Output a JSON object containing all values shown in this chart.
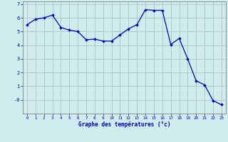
{
  "hours": [
    0,
    1,
    2,
    3,
    4,
    5,
    6,
    7,
    8,
    9,
    10,
    11,
    12,
    13,
    14,
    15,
    16,
    17,
    18,
    19,
    20,
    21,
    22,
    23
  ],
  "temps": [
    5.5,
    5.9,
    6.0,
    6.2,
    5.3,
    5.1,
    5.0,
    4.4,
    4.45,
    4.3,
    4.3,
    4.75,
    5.2,
    5.5,
    6.6,
    6.55,
    6.55,
    4.05,
    4.5,
    3.0,
    1.4,
    1.1,
    -0.05,
    -0.35
  ],
  "line_color": "#0000cc",
  "marker_color": "#0000cc",
  "bg_color": "#d0ecec",
  "grid_color": "#b0c8c8",
  "xlabel": "Graphe des températures (°c)",
  "ylim_min": -1.0,
  "ylim_max": 7.2,
  "xlim_min": -0.5,
  "xlim_max": 23.5
}
